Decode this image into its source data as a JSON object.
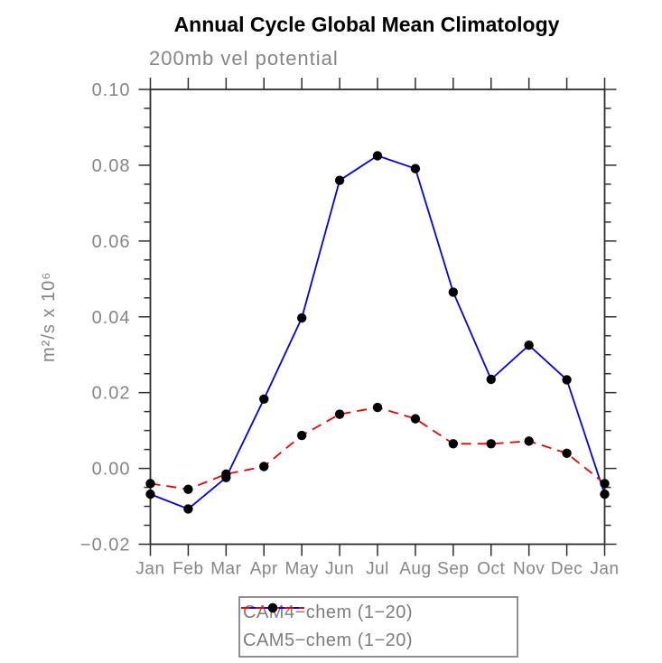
{
  "title": "Annual Cycle Global Mean Climatology",
  "subtitle": "200mb vel potential",
  "chart_data": {
    "type": "line",
    "x_categories": [
      "Jan",
      "Feb",
      "Mar",
      "Apr",
      "May",
      "Jun",
      "Jul",
      "Aug",
      "Sep",
      "Oct",
      "Nov",
      "Dec",
      "Jan"
    ],
    "series": [
      {
        "name": "CAM4−chem (1−20)",
        "color": "#0000ee",
        "line_style": "solid",
        "marker": "circle",
        "values": [
          -0.0068,
          -0.0107,
          -0.0024,
          0.0183,
          0.0397,
          0.076,
          0.0825,
          0.0791,
          0.0465,
          0.0235,
          0.0325,
          0.0234,
          -0.0068
        ]
      },
      {
        "name": "CAM5−chem (1−20)",
        "color": "#ee0000",
        "line_style": "dashed",
        "marker": "circle",
        "values": [
          -0.004,
          -0.0055,
          -0.0015,
          0.0005,
          0.0087,
          0.0143,
          0.0161,
          0.0131,
          0.0065,
          0.0065,
          0.0072,
          0.004,
          -0.004
        ]
      }
    ],
    "title": "Annual Cycle Global Mean Climatology",
    "subtitle": "200mb vel potential",
    "xlabel": "",
    "ylabel": "m²/s x 10⁶",
    "ylim": [
      -0.02,
      0.1
    ],
    "y_major_step": 0.02,
    "y_minor_step": 0.005,
    "y_tick_labels": [
      "−0.02",
      "0.00",
      "0.02",
      "0.04",
      "0.06",
      "0.08",
      "0.10"
    ],
    "grid": false,
    "legend_position": "bottom-center",
    "marker_color": "#000000"
  },
  "colors": {
    "axis": "#2d2d2d",
    "tick_labels": "#858585",
    "title": "#000000",
    "legend_border": "#8f8f8f",
    "background": "#ffffff"
  }
}
